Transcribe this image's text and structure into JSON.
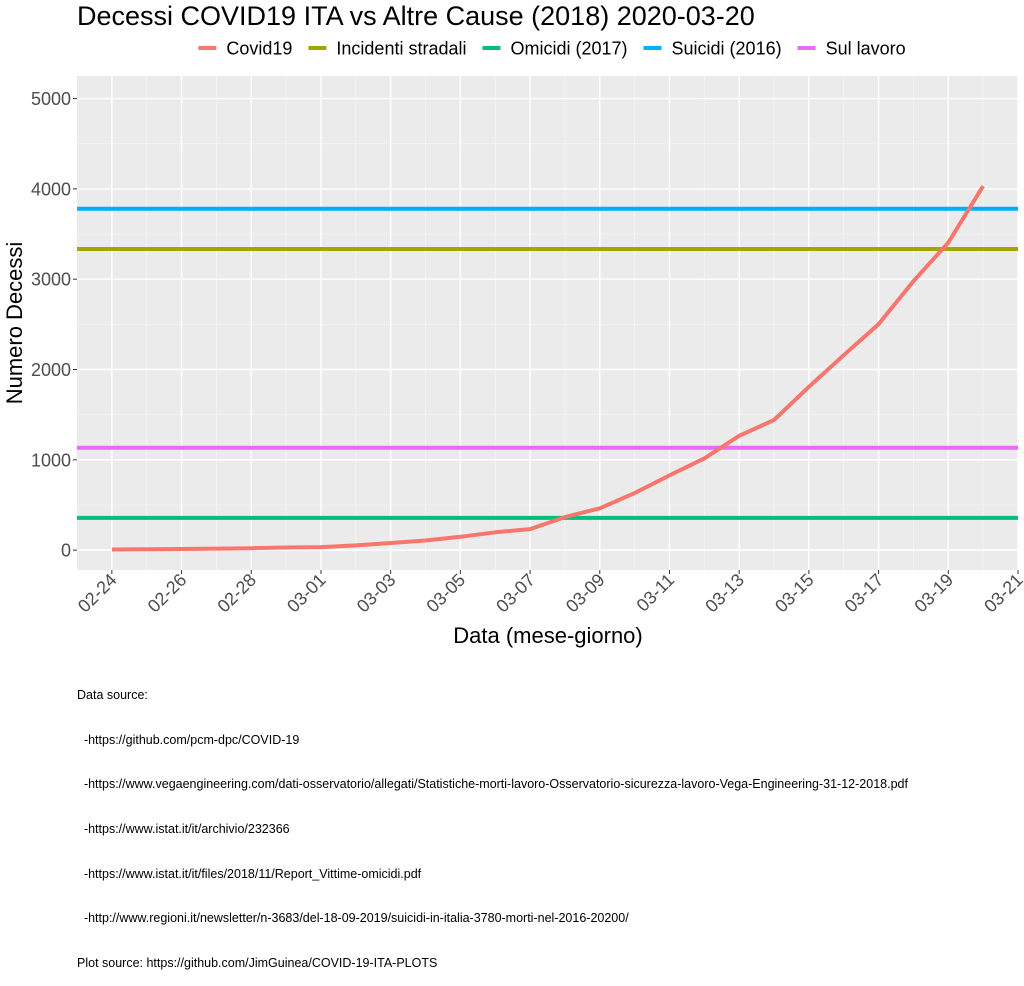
{
  "chart_data": {
    "type": "line",
    "title": "Decessi COVID19 ITA vs Altre Cause (2018) 2020-03-20",
    "xlabel": "Data (mese-giorno)",
    "ylabel": "Numero Decessi",
    "x": [
      "02-24",
      "02-25",
      "02-26",
      "02-27",
      "02-28",
      "02-29",
      "03-01",
      "03-02",
      "03-03",
      "03-04",
      "03-05",
      "03-06",
      "03-07",
      "03-08",
      "03-09",
      "03-10",
      "03-11",
      "03-12",
      "03-13",
      "03-14",
      "03-15",
      "03-16",
      "03-17",
      "03-18",
      "03-19",
      "03-20"
    ],
    "xlim": [
      "02-23",
      "03-21"
    ],
    "x_ticks": [
      "02-24",
      "02-26",
      "02-28",
      "03-01",
      "03-03",
      "03-05",
      "03-07",
      "03-09",
      "03-11",
      "03-13",
      "03-15",
      "03-17",
      "03-19",
      "03-21"
    ],
    "ylim": [
      -220,
      5250
    ],
    "y_ticks": [
      0,
      1000,
      2000,
      3000,
      4000,
      5000
    ],
    "grid": true,
    "legend_position": "top",
    "series": [
      {
        "name": "Covid19",
        "kind": "line",
        "color": "#F8766D",
        "values": [
          7,
          10,
          12,
          17,
          21,
          29,
          34,
          52,
          79,
          107,
          148,
          197,
          233,
          366,
          463,
          631,
          827,
          1016,
          1266,
          1441,
          1809,
          2158,
          2503,
          2978,
          3405,
          4032
        ]
      },
      {
        "name": "Incidenti stradali",
        "kind": "hline",
        "color": "#A3A500",
        "value": 3334
      },
      {
        "name": "Omicidi (2017)",
        "kind": "hline",
        "color": "#00BF7D",
        "value": 357
      },
      {
        "name": "Suicidi (2016)",
        "kind": "hline",
        "color": "#00B0F6",
        "value": 3780
      },
      {
        "name": "Sul lavoro",
        "kind": "hline",
        "color": "#E76BF3",
        "value": 1133
      }
    ]
  },
  "caption": {
    "lines": [
      "Data source:",
      "  -https://github.com/pcm-dpc/COVID-19",
      "  -https://www.vegaengineering.com/dati-osservatorio/allegati/Statistiche-morti-lavoro-Osservatorio-sicurezza-lavoro-Vega-Engineering-31-12-2018.pdf",
      "  -https://www.istat.it/it/archivio/232366",
      "  -https://www.istat.it/it/files/2018/11/Report_Vittime-omicidi.pdf",
      "  -http://www.regioni.it/newsletter/n-3683/del-18-09-2019/suicidi-in-italia-3780-morti-nel-2016-20200/",
      "Plot source: https://github.com/JimGuinea/COVID-19-ITA-PLOTS"
    ]
  }
}
